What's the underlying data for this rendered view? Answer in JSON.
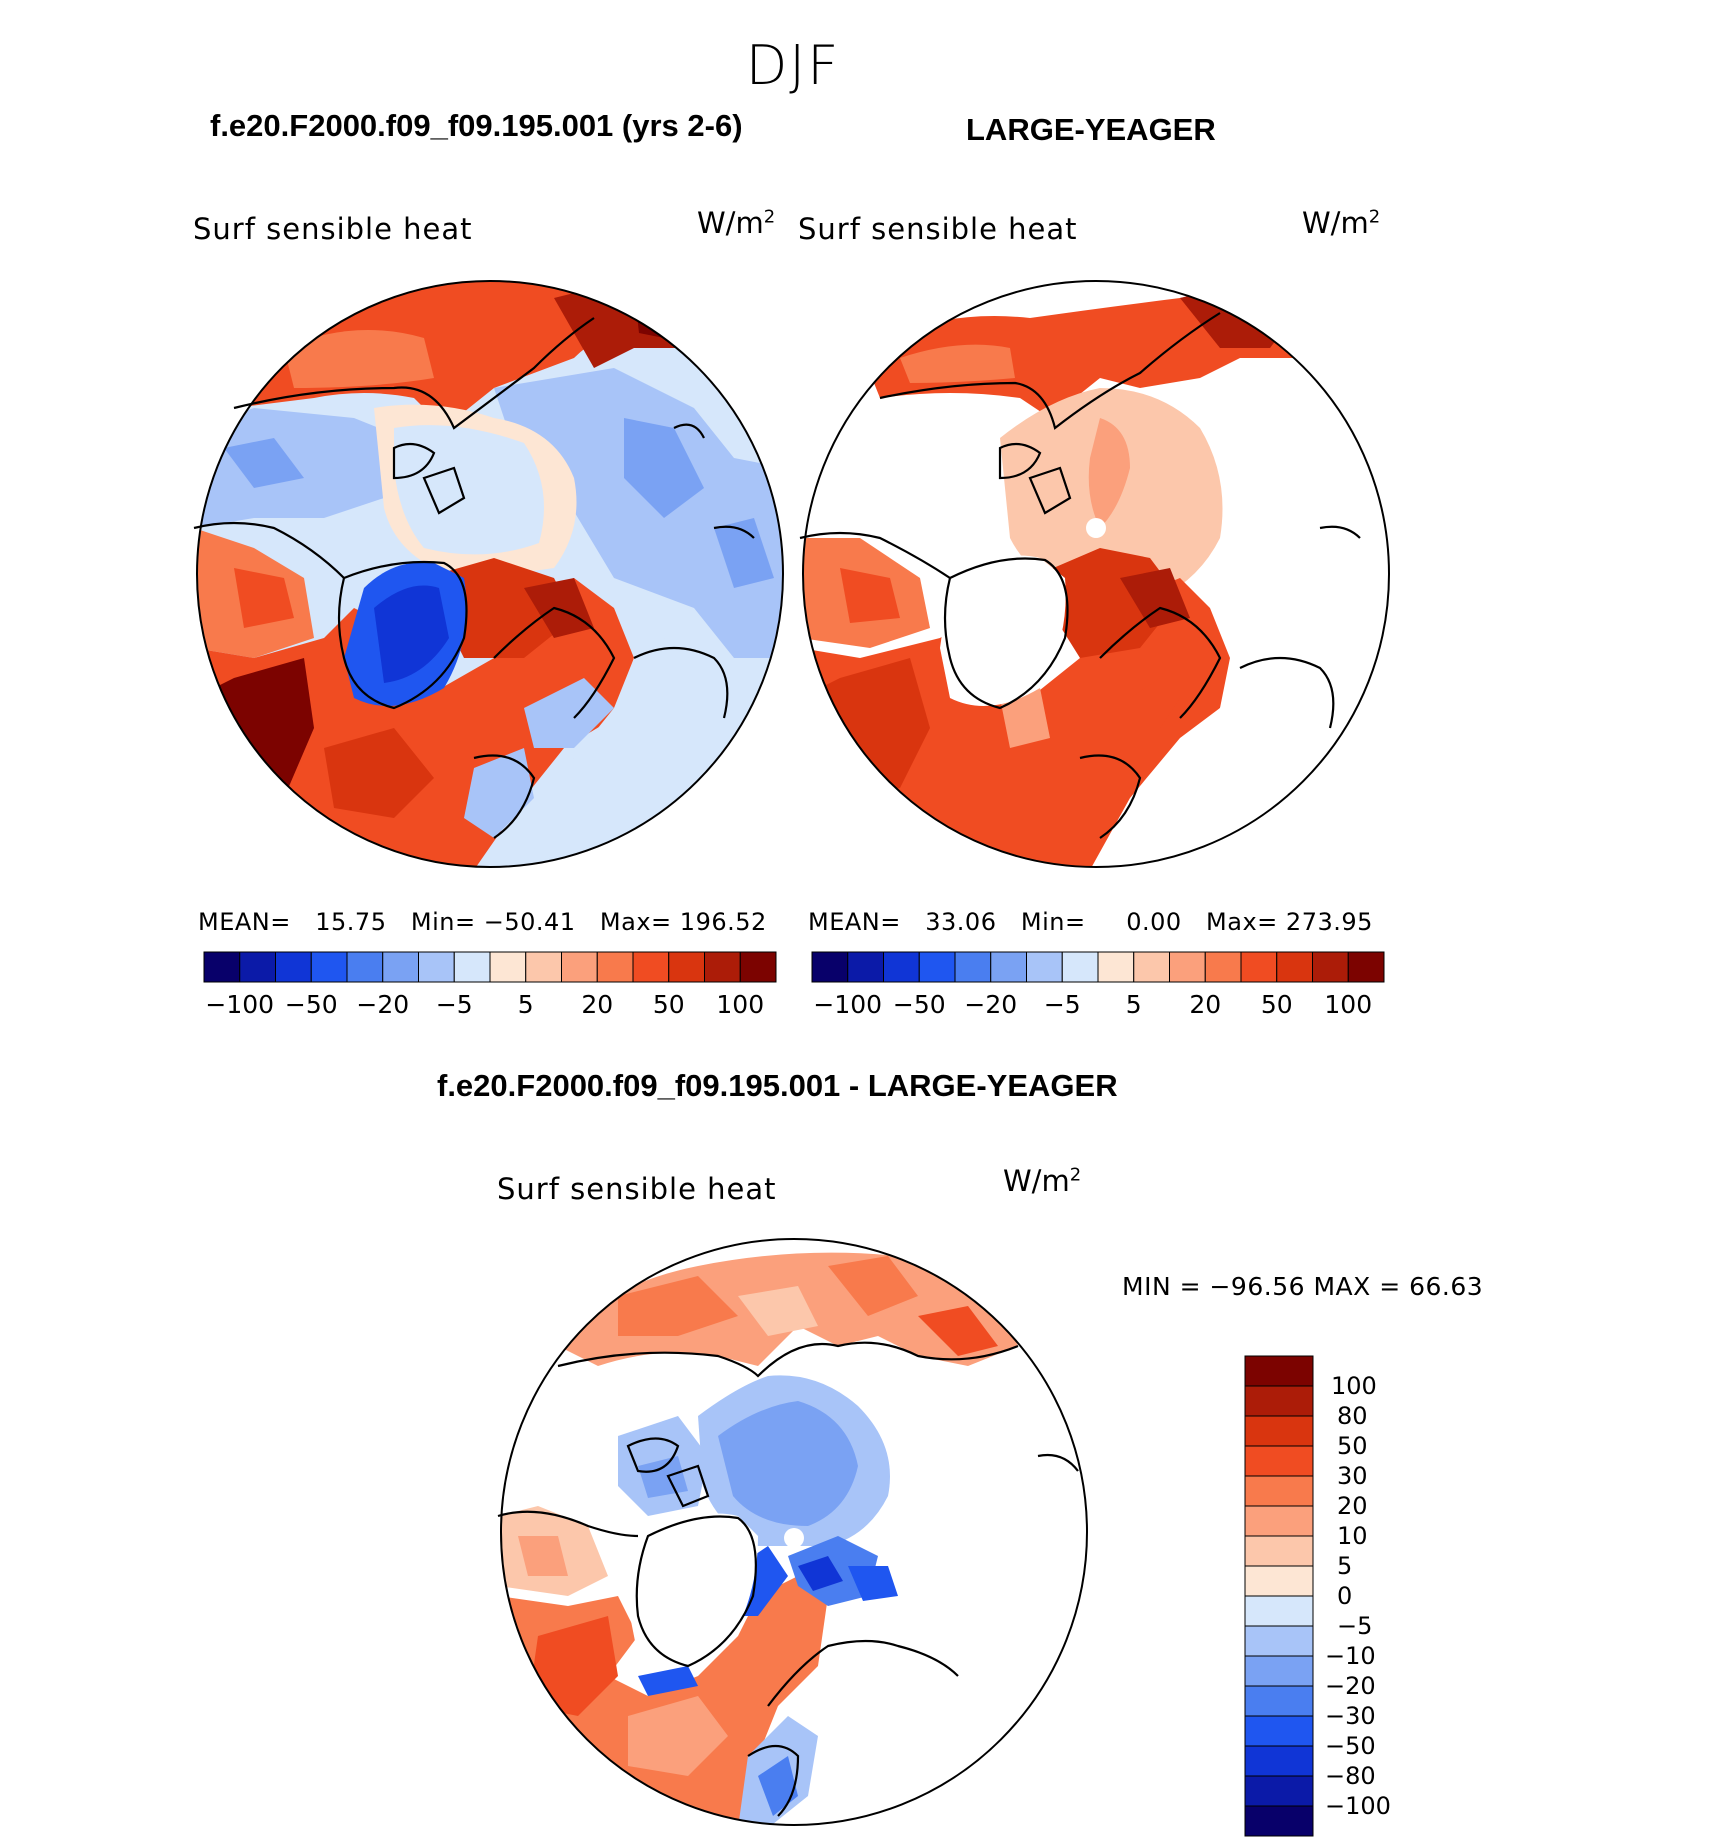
{
  "season": "DJF",
  "panels": [
    {
      "case": "f.e20.F2000.f09_f09.195.001 (yrs 2-6)",
      "label": "Surf sensible heat",
      "units_base": "W/m",
      "units_exp": "2",
      "stats": {
        "mean_label": "MEAN=",
        "mean": "15.75",
        "min_label": "Min=",
        "min": "−50.41",
        "max_label": "Max=",
        "max": "196.52"
      }
    },
    {
      "case": "LARGE-YEAGER",
      "label": "Surf sensible heat",
      "units_base": "W/m",
      "units_exp": "2",
      "stats": {
        "mean_label": "MEAN=",
        "mean": "33.06",
        "min_label": "Min=",
        "min": "0.00",
        "max_label": "Max=",
        "max": "273.95"
      }
    }
  ],
  "colorbar_ticks": [
    "−100",
    "−50",
    "−20",
    "−5",
    "5",
    "20",
    "50",
    "100"
  ],
  "colorbar_colors": [
    "#08006a",
    "#0b1aa8",
    "#1035d6",
    "#1f56f0",
    "#4a7ef0",
    "#7aa2f3",
    "#a8c4f8",
    "#d6e7fb",
    "#fde6d4",
    "#fcc7ab",
    "#fba07c",
    "#f87a4c",
    "#f04c22",
    "#d9350f",
    "#ac1c08",
    "#7c0300"
  ],
  "diff": {
    "title": "f.e20.F2000.f09_f09.195.001 - LARGE-YEAGER",
    "label": "Surf sensible heat",
    "units_base": "W/m",
    "units_exp": "2",
    "minmax": "MIN = −96.56 MAX =   66.63",
    "levels": [
      "100",
      "80",
      "50",
      "30",
      "20",
      "10",
      "5",
      "0",
      "−5",
      "−10",
      "−20",
      "−30",
      "−50",
      "−80",
      "−100"
    ],
    "colors": [
      "#7c0300",
      "#ac1c08",
      "#d9350f",
      "#f04c22",
      "#f87a4c",
      "#fba07c",
      "#fcc7ab",
      "#fde6d4",
      "#d6e7fb",
      "#a8c4f8",
      "#7aa2f3",
      "#4a7ef0",
      "#1f56f0",
      "#1035d6",
      "#0b1aa8",
      "#08006a"
    ]
  },
  "palette": {
    "land_ice": "#ffffff",
    "outline": "#000000"
  }
}
